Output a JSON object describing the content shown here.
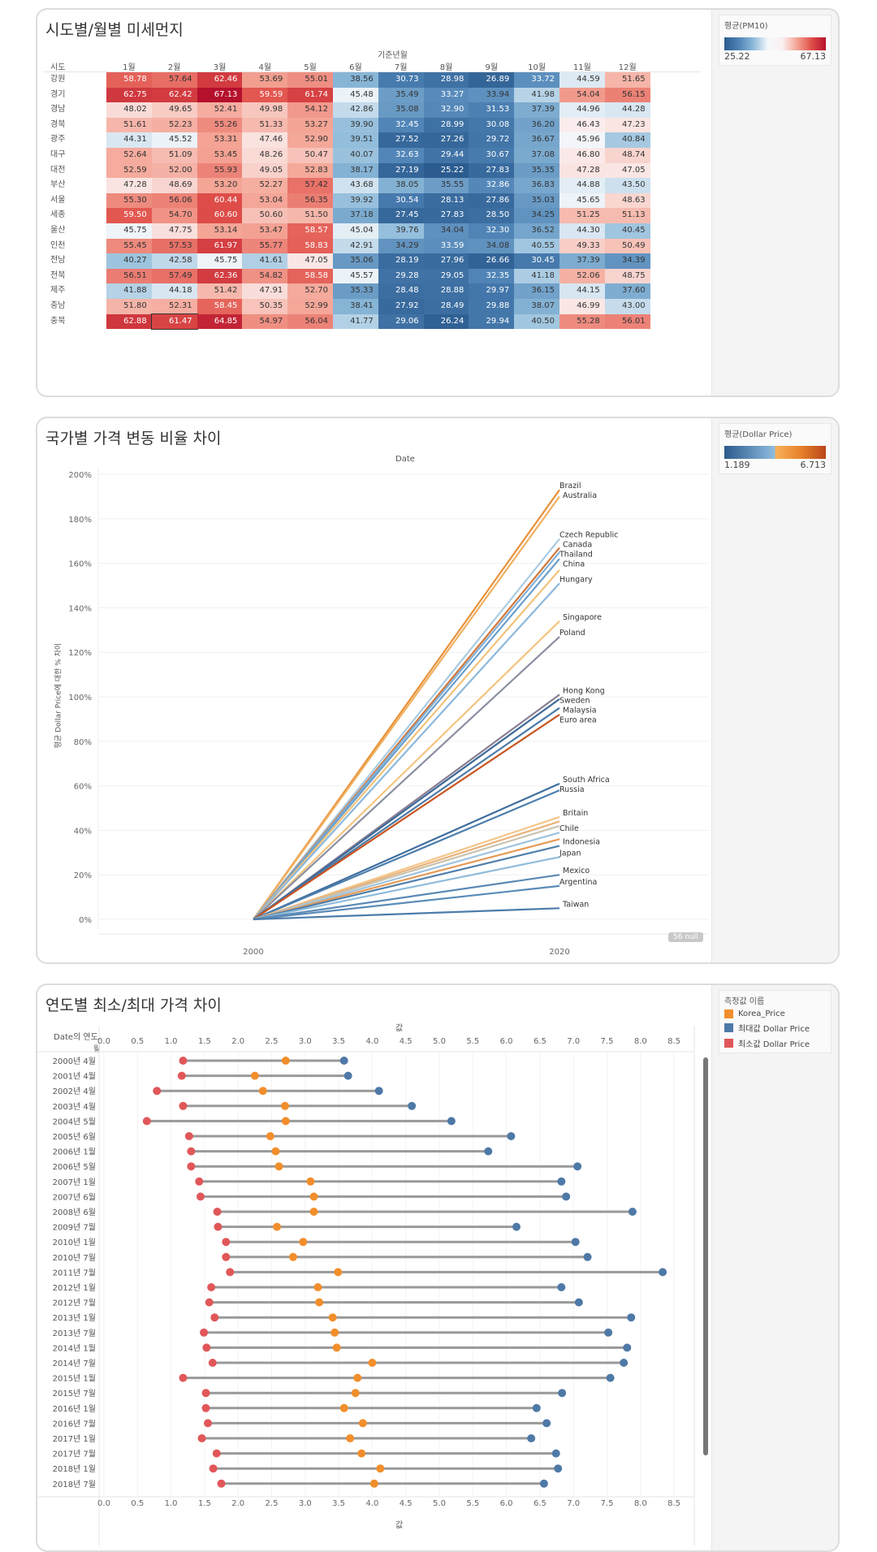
{
  "heatmap": {
    "title": "시도별/월별 미세먼지",
    "column_header": "기준년월",
    "row_header": "시도",
    "legend_title": "평균(PM10)",
    "legend_min": "25.22",
    "legend_max": "67.13",
    "months": [
      "1월",
      "2월",
      "3월",
      "4월",
      "5월",
      "6월",
      "7월",
      "8월",
      "9월",
      "10월",
      "11월",
      "12월"
    ],
    "selected_cell": {
      "row": "충북",
      "month": "2월"
    },
    "rows": [
      {
        "name": "강원",
        "values": [
          58.78,
          57.64,
          62.46,
          53.69,
          55.01,
          38.56,
          30.73,
          28.98,
          26.89,
          33.72,
          44.59,
          51.65
        ]
      },
      {
        "name": "경기",
        "values": [
          62.75,
          62.42,
          67.13,
          59.59,
          61.74,
          45.48,
          35.49,
          33.27,
          33.94,
          41.98,
          54.04,
          56.15
        ]
      },
      {
        "name": "경남",
        "values": [
          48.02,
          49.65,
          52.41,
          49.98,
          54.12,
          42.86,
          35.08,
          32.9,
          31.53,
          37.39,
          44.96,
          44.28
        ]
      },
      {
        "name": "경북",
        "values": [
          51.61,
          52.23,
          55.26,
          51.33,
          53.27,
          39.9,
          32.45,
          28.99,
          30.08,
          36.2,
          46.43,
          47.23
        ]
      },
      {
        "name": "광주",
        "values": [
          44.31,
          45.52,
          53.31,
          47.46,
          52.9,
          39.51,
          27.52,
          27.26,
          29.72,
          36.67,
          45.96,
          40.84
        ]
      },
      {
        "name": "대구",
        "values": [
          52.64,
          51.09,
          53.45,
          48.26,
          50.47,
          40.07,
          32.63,
          29.44,
          30.67,
          37.08,
          46.8,
          48.74
        ]
      },
      {
        "name": "대전",
        "values": [
          52.59,
          52.0,
          55.93,
          49.05,
          52.83,
          38.17,
          27.19,
          25.22,
          27.83,
          35.35,
          47.28,
          47.05
        ]
      },
      {
        "name": "부산",
        "values": [
          47.28,
          48.69,
          53.2,
          52.27,
          57.42,
          43.68,
          38.05,
          35.55,
          32.86,
          36.83,
          44.88,
          43.5
        ]
      },
      {
        "name": "서울",
        "values": [
          55.3,
          56.06,
          60.44,
          53.04,
          56.35,
          39.92,
          30.54,
          28.13,
          27.86,
          35.03,
          45.65,
          48.63
        ]
      },
      {
        "name": "세종",
        "values": [
          59.5,
          54.7,
          60.6,
          50.6,
          51.5,
          37.18,
          27.45,
          27.83,
          28.5,
          34.25,
          51.25,
          51.13
        ]
      },
      {
        "name": "울산",
        "values": [
          45.75,
          47.75,
          53.14,
          53.47,
          58.57,
          45.04,
          39.76,
          34.04,
          32.3,
          36.52,
          44.3,
          40.45
        ]
      },
      {
        "name": "인천",
        "values": [
          55.45,
          57.53,
          61.97,
          55.77,
          58.83,
          42.91,
          34.29,
          33.59,
          34.08,
          40.55,
          49.33,
          50.49
        ]
      },
      {
        "name": "전남",
        "values": [
          40.27,
          42.58,
          45.75,
          41.61,
          47.05,
          35.06,
          28.19,
          27.96,
          26.66,
          30.45,
          37.39,
          34.39
        ]
      },
      {
        "name": "전북",
        "values": [
          56.51,
          57.49,
          62.36,
          54.82,
          58.58,
          45.57,
          29.28,
          29.05,
          32.35,
          41.18,
          52.06,
          48.75
        ]
      },
      {
        "name": "제주",
        "values": [
          41.88,
          44.18,
          51.42,
          47.91,
          52.7,
          35.33,
          28.48,
          28.88,
          29.97,
          36.15,
          44.15,
          37.6
        ]
      },
      {
        "name": "충남",
        "values": [
          51.8,
          52.31,
          58.45,
          50.35,
          52.99,
          38.41,
          27.92,
          28.49,
          29.88,
          38.07,
          46.99,
          43.0
        ]
      },
      {
        "name": "충북",
        "values": [
          62.88,
          61.47,
          64.85,
          54.97,
          56.04,
          41.77,
          29.06,
          26.24,
          29.94,
          40.5,
          55.28,
          56.01
        ]
      }
    ],
    "colors": {
      "low": "#2b5b8f",
      "mid": "#f7f9fb",
      "high": "#b5102c"
    }
  },
  "chart_data": [
    {
      "type": "line",
      "title": "국가별 가격 변동 비율 차이",
      "column_header": "Date",
      "ylabel": "평균 Dollar Price에 대한 % 차이",
      "x": [
        "2000",
        "2020"
      ],
      "ylim": [
        0,
        200
      ],
      "yticks": [
        "0%",
        "20%",
        "40%",
        "60%",
        "80%",
        "100%",
        "120%",
        "140%",
        "160%",
        "180%",
        "200%"
      ],
      "grid": true,
      "null_badge": "56 null",
      "legend": {
        "title": "평균(Dollar Price)",
        "min": "1.189",
        "max": "6.713",
        "placement": "right"
      },
      "series": [
        {
          "name": "Brazil",
          "values": [
            0,
            193
          ],
          "color": "#e8913a"
        },
        {
          "name": "Australia",
          "values": [
            0,
            190
          ],
          "color": "#f0b060"
        },
        {
          "name": "Czech Republic",
          "values": [
            0,
            171
          ],
          "color": "#a9cbe3"
        },
        {
          "name": "Canada",
          "values": [
            0,
            167
          ],
          "color": "#d2773a"
        },
        {
          "name": "Thailand",
          "values": [
            0,
            165
          ],
          "color": "#7fb0d8"
        },
        {
          "name": "China",
          "values": [
            0,
            162
          ],
          "color": "#6a9fcb"
        },
        {
          "values": [
            0,
            157
          ],
          "color": "#f2c27a"
        },
        {
          "name": "Hungary",
          "values": [
            0,
            151
          ],
          "color": "#8bb8dc"
        },
        {
          "name": "Singapore",
          "values": [
            0,
            134
          ],
          "color": "#f4c480"
        },
        {
          "name": "Poland",
          "values": [
            0,
            127
          ],
          "color": "#8a8fa0"
        },
        {
          "name": "Hong Kong",
          "values": [
            0,
            101
          ],
          "color": "#8a7f94"
        },
        {
          "name": "Sweden",
          "values": [
            0,
            99
          ],
          "color": "#3d6a98"
        },
        {
          "name": "Malaysia",
          "values": [
            0,
            95
          ],
          "color": "#4a7aa8"
        },
        {
          "name": "Euro area",
          "values": [
            0,
            92
          ],
          "color": "#c8541e"
        },
        {
          "name": "South Africa",
          "values": [
            0,
            61
          ],
          "color": "#3f6e9e"
        },
        {
          "name": "Russia",
          "values": [
            0,
            58
          ],
          "color": "#4d7fad"
        },
        {
          "name": "Britain",
          "values": [
            0,
            46
          ],
          "color": "#f4c68a"
        },
        {
          "values": [
            0,
            44
          ],
          "color": "#e9b27a"
        },
        {
          "values": [
            0,
            42
          ],
          "color": "#c9c3b0"
        },
        {
          "name": "Chile",
          "values": [
            0,
            39
          ],
          "color": "#9fc3de"
        },
        {
          "values": [
            0,
            36
          ],
          "color": "#e59a55"
        },
        {
          "name": "Indonesia",
          "values": [
            0,
            33
          ],
          "color": "#4f7fab"
        },
        {
          "name": "Japan",
          "values": [
            0,
            28
          ],
          "color": "#8fbcdc"
        },
        {
          "name": "Mexico",
          "values": [
            0,
            20
          ],
          "color": "#5a89b5"
        },
        {
          "name": "Argentina",
          "values": [
            0,
            15
          ],
          "color": "#5b8bb7"
        },
        {
          "name": "Taiwan",
          "values": [
            0,
            5
          ],
          "color": "#4c7cab"
        }
      ]
    },
    {
      "type": "dumbbell",
      "title": "연도별 최소/최대 가격 차이",
      "row_header": "Date의 연도, 월",
      "xlabel": "값",
      "xlim": [
        0,
        8.5
      ],
      "xticks": [
        "0.0",
        "0.5",
        "1.0",
        "1.5",
        "2.0",
        "2.5",
        "3.0",
        "3.5",
        "4.0",
        "4.5",
        "5.0",
        "5.5",
        "6.0",
        "6.5",
        "7.0",
        "7.5",
        "8.0",
        "8.5"
      ],
      "legend": {
        "title": "측정값 이름",
        "placement": "right",
        "items": [
          {
            "name": "Korea_Price",
            "color": "#f28e2b"
          },
          {
            "name": "최대값 Dollar Price",
            "color": "#4e79a7"
          },
          {
            "name": "최소값 Dollar Price",
            "color": "#e15759"
          }
        ]
      },
      "categories": [
        "2000년 4월",
        "2001년 4월",
        "2002년 4월",
        "2003년 4월",
        "2004년 5월",
        "2005년 6월",
        "2006년 1월",
        "2006년 5월",
        "2007년 1월",
        "2007년 6월",
        "2008년 6월",
        "2009년 7월",
        "2010년 1월",
        "2010년 7월",
        "2011년 7월",
        "2012년 1월",
        "2012년 7월",
        "2013년 1월",
        "2013년 7월",
        "2014년 1월",
        "2014년 7월",
        "2015년 1월",
        "2015년 7월",
        "2016년 1월",
        "2016년 7월",
        "2017년 1월",
        "2017년 7월",
        "2018년 1월",
        "2018년 7월"
      ],
      "series": [
        {
          "name": "최소값 Dollar Price",
          "values": [
            1.18,
            1.16,
            0.79,
            1.18,
            0.64,
            1.27,
            1.3,
            1.3,
            1.42,
            1.44,
            1.69,
            1.7,
            1.82,
            1.82,
            1.88,
            1.6,
            1.57,
            1.65,
            1.49,
            1.53,
            1.62,
            1.18,
            1.52,
            1.52,
            1.55,
            1.46,
            1.68,
            1.63,
            1.75
          ]
        },
        {
          "name": "Korea_Price",
          "values": [
            2.71,
            2.25,
            2.37,
            2.7,
            2.71,
            2.48,
            2.56,
            2.61,
            3.08,
            3.13,
            3.13,
            2.58,
            2.97,
            2.82,
            3.49,
            3.19,
            3.21,
            3.41,
            3.44,
            3.47,
            4.0,
            3.78,
            3.75,
            3.58,
            3.86,
            3.67,
            3.84,
            4.12,
            4.03
          ]
        },
        {
          "name": "최대값 Dollar Price",
          "values": [
            3.58,
            3.64,
            4.1,
            4.59,
            5.18,
            6.07,
            5.73,
            7.06,
            6.82,
            6.89,
            7.88,
            6.15,
            7.03,
            7.21,
            8.33,
            6.82,
            7.08,
            7.86,
            7.52,
            7.8,
            7.75,
            7.55,
            6.83,
            6.45,
            6.6,
            6.37,
            6.74,
            6.77,
            6.56
          ]
        }
      ]
    }
  ]
}
